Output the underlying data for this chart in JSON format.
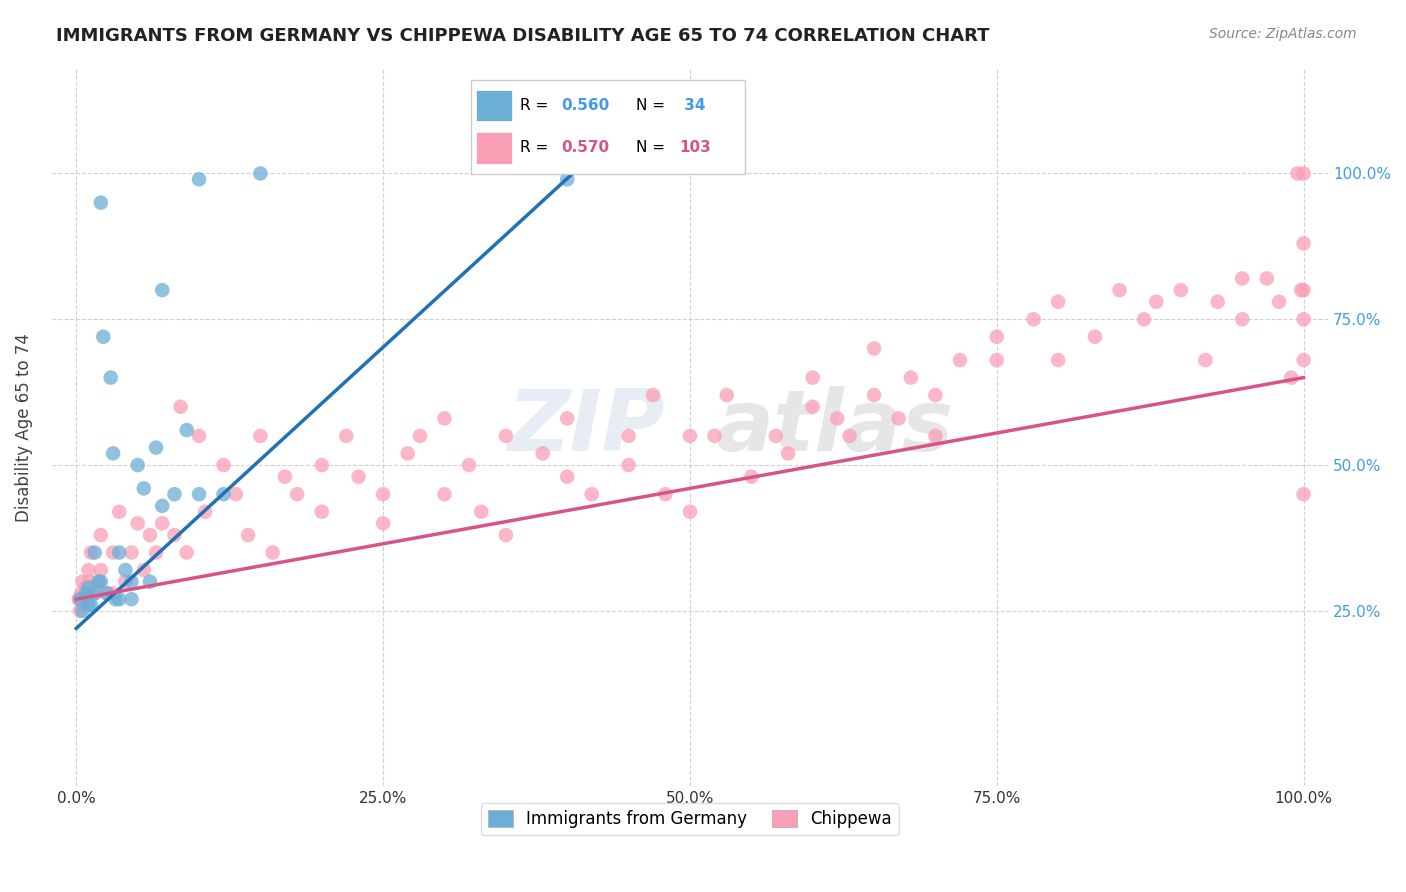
{
  "title": "IMMIGRANTS FROM GERMANY VS CHIPPEWA DISABILITY AGE 65 TO 74 CORRELATION CHART",
  "source": "Source: ZipAtlas.com",
  "ylabel": "Disability Age 65 to 74",
  "x_tick_positions": [
    0,
    25,
    50,
    75,
    100
  ],
  "y_tick_positions": [
    25,
    50,
    75,
    100
  ],
  "blue_R": 0.56,
  "blue_N": 34,
  "pink_R": 0.57,
  "pink_N": 103,
  "blue_color": "#6baed6",
  "pink_color": "#fa9fb5",
  "blue_line_color": "#2171b5",
  "pink_line_color": "#d6548a",
  "right_tick_color": "#4499ee",
  "legend_blue_label": "Immigrants from Germany",
  "legend_pink_label": "Chippewa",
  "watermark_zip": "ZIP",
  "watermark_atlas": "atlas",
  "blue_scatter_x": [
    0.3,
    0.5,
    0.8,
    1.0,
    1.2,
    1.5,
    1.8,
    2.0,
    2.2,
    2.5,
    2.8,
    3.0,
    3.2,
    3.5,
    4.0,
    4.5,
    5.0,
    5.5,
    6.0,
    6.5,
    7.0,
    8.0,
    9.0,
    10.0,
    12.0,
    15.0,
    1.0,
    1.5,
    2.0,
    3.5,
    4.5,
    7.0,
    10.0,
    40.0
  ],
  "blue_scatter_y": [
    27,
    25,
    28,
    29,
    26,
    28,
    30,
    95,
    72,
    28,
    65,
    52,
    27,
    35,
    32,
    30,
    50,
    46,
    30,
    53,
    43,
    45,
    56,
    45,
    45,
    100,
    26,
    35,
    30,
    27,
    27,
    80,
    99,
    99
  ],
  "pink_scatter_x": [
    0.2,
    0.3,
    0.4,
    0.5,
    0.6,
    0.7,
    0.8,
    0.9,
    1.0,
    1.0,
    1.2,
    1.5,
    1.8,
    2.0,
    2.0,
    2.5,
    3.0,
    3.0,
    3.5,
    4.0,
    4.5,
    5.0,
    5.5,
    6.0,
    6.5,
    7.0,
    8.0,
    8.5,
    9.0,
    10.0,
    10.5,
    12.0,
    13.0,
    14.0,
    15.0,
    16.0,
    17.0,
    18.0,
    20.0,
    20.0,
    22.0,
    23.0,
    25.0,
    25.0,
    27.0,
    28.0,
    30.0,
    30.0,
    32.0,
    33.0,
    35.0,
    35.0,
    38.0,
    40.0,
    40.0,
    42.0,
    45.0,
    45.0,
    47.0,
    48.0,
    50.0,
    50.0,
    52.0,
    53.0,
    55.0,
    57.0,
    58.0,
    60.0,
    60.0,
    62.0,
    63.0,
    65.0,
    65.0,
    67.0,
    68.0,
    70.0,
    70.0,
    72.0,
    75.0,
    75.0,
    78.0,
    80.0,
    80.0,
    83.0,
    85.0,
    87.0,
    88.0,
    90.0,
    92.0,
    93.0,
    95.0,
    95.0,
    97.0,
    98.0,
    99.0,
    99.5,
    99.8,
    100.0,
    100.0,
    100.0,
    100.0,
    100.0,
    100.0
  ],
  "pink_scatter_y": [
    27,
    25,
    28,
    30,
    26,
    28,
    29,
    27,
    30,
    32,
    35,
    28,
    30,
    32,
    38,
    28,
    28,
    35,
    42,
    30,
    35,
    40,
    32,
    38,
    35,
    40,
    38,
    60,
    35,
    55,
    42,
    50,
    45,
    38,
    55,
    35,
    48,
    45,
    42,
    50,
    55,
    48,
    45,
    40,
    52,
    55,
    45,
    58,
    50,
    42,
    55,
    38,
    52,
    48,
    58,
    45,
    55,
    50,
    62,
    45,
    55,
    42,
    55,
    62,
    48,
    55,
    52,
    65,
    60,
    58,
    55,
    62,
    70,
    58,
    65,
    55,
    62,
    68,
    72,
    68,
    75,
    68,
    78,
    72,
    80,
    75,
    78,
    80,
    68,
    78,
    75,
    82,
    82,
    78,
    65,
    100,
    80,
    88,
    75,
    68,
    80,
    100,
    45
  ],
  "blue_line_x": [
    0.0,
    42.0
  ],
  "blue_line_y": [
    22.0,
    103.0
  ],
  "pink_line_x": [
    0.0,
    100.0
  ],
  "pink_line_y": [
    27.0,
    65.0
  ],
  "xlim": [
    -2,
    102
  ],
  "ylim": [
    -5,
    118
  ]
}
